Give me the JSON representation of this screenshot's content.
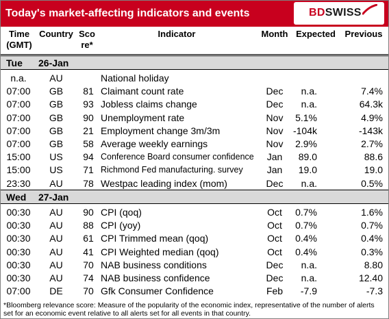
{
  "header": {
    "title": "Today's market-affecting indicators and events",
    "logo_text_1": "BD",
    "logo_text_2": "SWISS"
  },
  "columns": {
    "time": "Time (GMT)",
    "time_1": "Time",
    "time_2": "(GMT)",
    "country": "Country",
    "score_1": "Sco",
    "score_2": "re*",
    "indicator": "Indicator",
    "month": "Month",
    "expected": "Expected",
    "previous": "Previous"
  },
  "days": [
    {
      "weekday": "Tue",
      "date": "26-Jan",
      "rows": [
        {
          "time": "n.a.",
          "country": "AU",
          "score": "",
          "indicator": "National holiday",
          "month": "",
          "expected": "",
          "previous": ""
        },
        {
          "time": "07:00",
          "country": "GB",
          "score": "81",
          "indicator": "Claimant count rate",
          "month": "Dec",
          "expected": "n.a.",
          "previous": "7.4%"
        },
        {
          "time": "07:00",
          "country": "GB",
          "score": "93",
          "indicator": "Jobless claims change",
          "month": "Dec",
          "expected": "n.a.",
          "previous": "64.3k"
        },
        {
          "time": "07:00",
          "country": "GB",
          "score": "90",
          "indicator": "Unemployment rate",
          "month": "Nov",
          "expected": "5.1%",
          "previous": "4.9%"
        },
        {
          "time": "07:00",
          "country": "GB",
          "score": "21",
          "indicator": "Employment change 3m/3m",
          "month": "Nov",
          "expected": "-104k",
          "previous": "-143k"
        },
        {
          "time": "07:00",
          "country": "GB",
          "score": "58",
          "indicator": "Average weekly earnings",
          "month": "Nov",
          "expected": "2.9%",
          "previous": "2.7%"
        },
        {
          "time": "15:00",
          "country": "US",
          "score": "94",
          "indicator": "Conference Board consumer confidence",
          "month": "Jan",
          "expected": "89.0",
          "previous": "88.6"
        },
        {
          "time": "15:00",
          "country": "US",
          "score": "71",
          "indicator": "Richmond Fed manufacturing. survey",
          "month": "Jan",
          "expected": "19.0",
          "previous": "19.0"
        },
        {
          "time": "23:30",
          "country": "AU",
          "score": "78",
          "indicator": "Westpac leading index (mom)",
          "month": "Dec",
          "expected": "n.a.",
          "previous": "0.5%"
        }
      ]
    },
    {
      "weekday": "Wed",
      "date": "27-Jan",
      "rows": [
        {
          "time": "00:30",
          "country": "AU",
          "score": "90",
          "indicator": "CPI (qoq)",
          "month": "Oct",
          "expected": "0.7%",
          "previous": "1.6%"
        },
        {
          "time": "00:30",
          "country": "AU",
          "score": "88",
          "indicator": "CPI (yoy)",
          "month": "Oct",
          "expected": "0.7%",
          "previous": "0.7%"
        },
        {
          "time": "00:30",
          "country": "AU",
          "score": "61",
          "indicator": "CPI Trimmed mean (qoq)",
          "month": "Oct",
          "expected": "0.4%",
          "previous": "0.4%"
        },
        {
          "time": "00:30",
          "country": "AU",
          "score": "41",
          "indicator": "CPI Weighted median (qoq)",
          "month": "Oct",
          "expected": "0.4%",
          "previous": "0.3%"
        },
        {
          "time": "00:30",
          "country": "AU",
          "score": "70",
          "indicator": "NAB business conditions",
          "month": "Dec",
          "expected": "n.a.",
          "previous": "8.80"
        },
        {
          "time": "00:30",
          "country": "AU",
          "score": "74",
          "indicator": "NAB business confidence",
          "month": "Dec",
          "expected": "n.a.",
          "previous": "12.40"
        },
        {
          "time": "07:00",
          "country": "DE",
          "score": "70",
          "indicator": "Gfk Consumer Confidence",
          "month": "Feb",
          "expected": "-7.9",
          "previous": "-7.3"
        }
      ]
    }
  ],
  "footnote": "*Bloomberg relevance score:  Measure of the popularity of the economic index, representative of the number of alerts set for an economic event relative to all alerts set for all events in that country.",
  "colors": {
    "header_bg": "#c8001e",
    "day_bg": "#d9d9d9"
  }
}
